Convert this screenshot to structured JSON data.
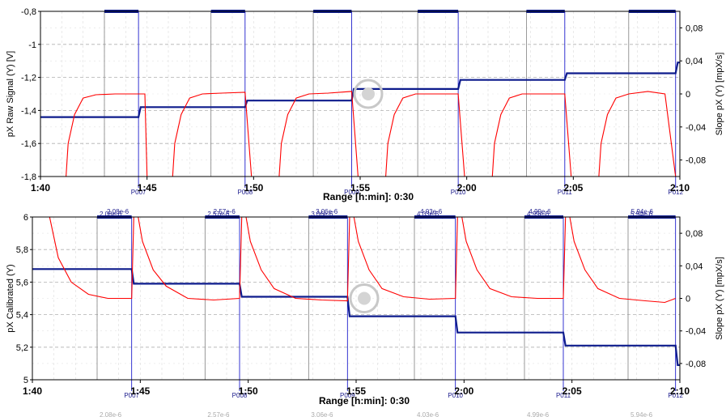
{
  "colors": {
    "raw": "#ff0000",
    "slope": "#0d1b8c",
    "grid": "#b0b0b0",
    "marker": "#1f1fcc",
    "segment": "#808080",
    "bar": "#0d1b8c"
  },
  "range_text": "Range [h:min]: 0:30",
  "time_ticks": [
    "1:40",
    "1:45",
    "1:50",
    "1:55",
    "2:00",
    "2:05",
    "2:10"
  ],
  "markers": [
    "P007",
    "P008",
    "P009",
    "P010",
    "P011",
    "P012"
  ],
  "segment_values": [
    "2.08e-6",
    "2.57e-6",
    "3.06e-6",
    "4.03e-6",
    "4.99e-6",
    "5.94e-6"
  ],
  "watermark": "logo",
  "chart_data": [
    {
      "type": "line",
      "x_unit": "h:min",
      "xlim": [
        "1:40",
        "2:10"
      ],
      "ylabel": "pX Raw Signal (Y) [V]",
      "ylim": [
        -1.8,
        -0.8
      ],
      "y_ticks": [
        "-0,8",
        "-1",
        "-1,2",
        "-1,4",
        "-1,6",
        "-1,8"
      ],
      "y2label": "Slope pX (Y) [mpX/s]",
      "y2lim": [
        -0.1,
        0.1
      ],
      "y2_ticks": [
        "0,08",
        "0,04",
        "0",
        "-0,04",
        "-0,08"
      ],
      "grid": true,
      "marker_times": [
        "1:44.6",
        "1:49.6",
        "1:54.6",
        "1:59.6",
        "2:04.6",
        "2:09.8"
      ],
      "segment_bars": [
        [
          "1:43.0",
          "1:44.6"
        ],
        [
          "1:48.0",
          "1:49.6"
        ],
        [
          "1:52.8",
          "1:54.6"
        ],
        [
          "1:57.7",
          "1:59.6"
        ],
        [
          "2:02.8",
          "2:04.6"
        ],
        [
          "2:07.6",
          "2:09.8"
        ]
      ],
      "series": [
        {
          "axis": "left",
          "x": [
            "1:40",
            "1:44.6",
            "1:44.7",
            "1:49.6",
            "1:49.7",
            "1:54.6",
            "1:54.7",
            "1:59.6",
            "1:59.7",
            "2:04.6",
            "2:04.7",
            "2:09.8",
            "2:09.9",
            "2:10"
          ],
          "values": [
            -1.44,
            -1.44,
            -1.38,
            -1.38,
            -1.34,
            -1.34,
            -1.27,
            -1.27,
            -1.215,
            -1.215,
            -1.175,
            -1.175,
            -1.11,
            -1.11
          ]
        },
        {
          "axis": "right",
          "x": [
            "1:41.2",
            "1:41.3",
            "1:41.6",
            "1:42.0",
            "1:42.6",
            "1:43.5",
            "1:44.6",
            "1:44.9",
            "1:45.0",
            "1:46.2",
            "1:46.3",
            "1:46.6",
            "1:47.0",
            "1:47.6",
            "1:48.5",
            "1:49.6",
            "1:49.9",
            "1:50.0",
            "1:51.2",
            "1:51.3",
            "1:51.6",
            "1:52.0",
            "1:52.6",
            "1:53.5",
            "1:54.6",
            "1:54.9",
            "1:55.0",
            "1:56.2",
            "1:56.3",
            "1:56.6",
            "1:57.0",
            "1:57.6",
            "1:58.5",
            "1:59.6",
            "1:59.9",
            "2:00.0",
            "2:01.2",
            "2:01.3",
            "2:01.6",
            "2:02.0",
            "2:02.6",
            "2:03.5",
            "2:04.6",
            "2:04.9",
            "2:05.0",
            "2:06.2",
            "2:06.3",
            "2:06.6",
            "2:07.0",
            "2:07.6",
            "2:08.5",
            "2:09.3",
            "2:09.8"
          ],
          "values": [
            -0.1,
            -0.06,
            -0.025,
            -0.005,
            -0.001,
            0,
            0,
            0,
            -0.1,
            -0.1,
            -0.06,
            -0.025,
            -0.005,
            0,
            0.001,
            0.002,
            -0.1,
            -0.1,
            -0.1,
            -0.06,
            -0.025,
            -0.005,
            0,
            0.001,
            0.003,
            -0.1,
            -0.1,
            -0.1,
            -0.06,
            -0.025,
            -0.005,
            0,
            0,
            0,
            -0.1,
            -0.1,
            -0.1,
            -0.06,
            -0.025,
            -0.005,
            0,
            0,
            0,
            -0.1,
            -0.1,
            -0.1,
            -0.06,
            -0.025,
            -0.005,
            0,
            0.003,
            0,
            -0.1
          ]
        }
      ]
    },
    {
      "type": "line",
      "x_unit": "h:min",
      "xlim": [
        "1:40",
        "2:10"
      ],
      "ylabel": "pX Calibrated (Y)",
      "ylim": [
        5,
        6
      ],
      "y_ticks": [
        "6",
        "5,8",
        "5,6",
        "5,4",
        "5,2",
        "5"
      ],
      "y2label": "Slope pX (Y) [mpX/s]",
      "y2lim": [
        -0.1,
        0.1
      ],
      "y2_ticks": [
        "0,08",
        "0,04",
        "0",
        "-0,04",
        "-0,08"
      ],
      "grid": true,
      "marker_times": [
        "1:44.6",
        "1:49.6",
        "1:54.6",
        "1:59.6",
        "2:04.6",
        "2:09.8"
      ],
      "segment_bars": [
        [
          "1:43.0",
          "1:44.6"
        ],
        [
          "1:48.0",
          "1:49.6"
        ],
        [
          "1:52.8",
          "1:54.6"
        ],
        [
          "1:57.7",
          "1:59.6"
        ],
        [
          "2:02.8",
          "2:04.6"
        ],
        [
          "2:07.6",
          "2:09.8"
        ]
      ],
      "series": [
        {
          "axis": "left",
          "x": [
            "1:40",
            "1:44.6",
            "1:44.7",
            "1:49.6",
            "1:49.7",
            "1:54.6",
            "1:54.7",
            "1:59.6",
            "1:59.7",
            "2:04.6",
            "2:04.7",
            "2:09.8",
            "2:09.9",
            "2:10"
          ],
          "values": [
            5.68,
            5.68,
            5.59,
            5.59,
            5.51,
            5.51,
            5.39,
            5.39,
            5.29,
            5.29,
            5.21,
            5.21,
            5.09,
            5.09
          ]
        },
        {
          "axis": "right",
          "x": [
            "1:40.8",
            "1:41.2",
            "1:41.8",
            "1:42.6",
            "1:43.5",
            "1:44.6",
            "1:44.7",
            "1:44.9",
            "1:45.1",
            "1:45.6",
            "1:46.2",
            "1:47.2",
            "1:48.4",
            "1:49.6",
            "1:49.7",
            "1:49.9",
            "1:50.1",
            "1:50.6",
            "1:51.2",
            "1:52.2",
            "1:53.4",
            "1:54.6",
            "1:54.7",
            "1:54.9",
            "1:55.1",
            "1:55.6",
            "1:56.2",
            "1:57.2",
            "1:58.4",
            "1:59.6",
            "1:59.7",
            "1:59.9",
            "2:00.1",
            "2:00.6",
            "2:01.2",
            "2:02.2",
            "2:03.4",
            "2:04.6",
            "2:04.7",
            "2:04.9",
            "2:05.1",
            "2:05.6",
            "2:06.2",
            "2:07.2",
            "2:08.4",
            "2:09.3",
            "2:09.8"
          ],
          "values": [
            0.1,
            0.05,
            0.02,
            0.005,
            0.0,
            0.0,
            0.1,
            0.1,
            0.07,
            0.035,
            0.015,
            0.0,
            -0.002,
            0.0,
            0.1,
            0.1,
            0.07,
            0.035,
            0.012,
            0.0,
            -0.002,
            -0.003,
            0.1,
            0.1,
            0.07,
            0.035,
            0.012,
            0.002,
            -0.001,
            0.0,
            0.1,
            0.1,
            0.07,
            0.035,
            0.012,
            0.002,
            0.0,
            0.0,
            0.1,
            0.1,
            0.07,
            0.035,
            0.012,
            0.0,
            -0.003,
            -0.005,
            0.0
          ]
        }
      ]
    }
  ]
}
